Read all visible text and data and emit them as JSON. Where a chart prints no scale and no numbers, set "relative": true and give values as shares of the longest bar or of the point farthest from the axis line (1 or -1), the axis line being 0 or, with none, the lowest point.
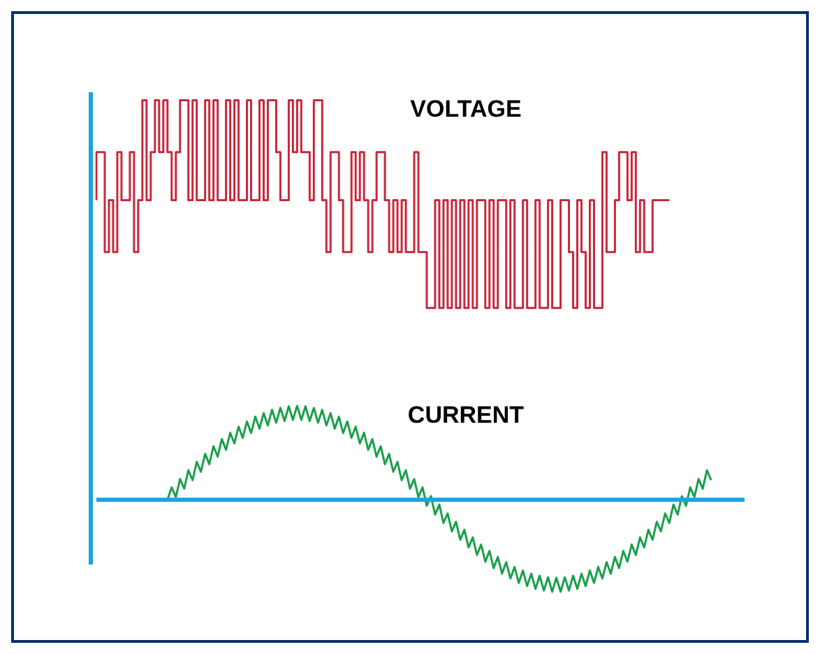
{
  "chart_data": {
    "type": "line",
    "relative": true,
    "ref_lines": [
      {
        "axis": "y",
        "value": 0,
        "color": "#1aa3e0"
      }
    ],
    "legend": false,
    "grid": false,
    "marker": "none",
    "tick_labels": false,
    "categories": [
      null,
      null,
      null,
      null,
      null,
      null,
      null,
      null,
      null,
      null,
      null,
      null,
      null,
      null,
      null,
      null,
      null,
      null,
      null,
      null,
      null,
      null,
      null,
      null,
      null,
      null,
      null,
      null,
      null,
      null,
      null,
      null,
      null,
      null,
      null,
      null,
      null,
      null,
      null,
      null,
      null,
      null,
      null,
      null,
      null,
      null,
      null,
      null,
      null,
      null,
      null,
      null,
      null,
      null,
      null,
      null,
      null,
      null,
      null,
      null,
      null,
      null,
      null,
      null,
      null,
      null,
      null,
      null,
      null,
      null,
      null,
      null,
      null,
      null,
      null,
      null,
      null,
      null,
      null,
      null,
      null,
      null,
      null,
      null,
      null,
      null,
      null,
      null,
      null,
      null,
      null,
      null,
      null,
      null,
      null,
      null,
      null,
      null,
      null,
      null,
      null,
      null,
      null,
      null,
      null,
      null,
      null,
      null,
      null,
      null,
      null,
      null,
      null,
      null,
      null,
      null,
      null,
      null,
      null,
      null,
      null,
      null,
      null,
      null,
      null,
      null,
      null,
      null,
      null,
      null,
      null,
      null,
      null,
      null,
      null,
      null,
      null,
      null,
      null,
      null,
      null,
      null,
      null,
      null,
      null,
      null,
      null,
      null,
      null,
      null,
      null,
      null,
      null,
      null,
      null,
      null
    ],
    "series": [
      {
        "name": "VOLTAGE",
        "type": "step",
        "color": "#c8283c",
        "values": [
          0.75,
          0.87,
          0.87,
          0.62,
          0.75,
          0.62,
          0.87,
          0.75,
          0.75,
          0.87,
          0.62,
          0.75,
          1,
          0.75,
          0.87,
          1,
          0.87,
          1,
          0.87,
          0.75,
          0.87,
          1,
          1,
          0.75,
          1,
          0.75,
          0.75,
          1,
          0.75,
          1,
          0.75,
          0.75,
          1,
          0.75,
          1,
          0.75,
          0.75,
          1,
          0.75,
          0.75,
          1,
          0.75,
          1,
          1,
          0.87,
          0.75,
          0.75,
          1,
          0.87,
          1,
          0.87,
          0.87,
          0.75,
          1,
          1,
          0.75,
          0.62,
          0.87,
          0.87,
          0.75,
          0.62,
          0.62,
          0.87,
          0.75,
          0.87,
          0.75,
          0.62,
          0.75,
          0.87,
          0.87,
          0.75,
          0.62,
          0.75,
          0.62,
          0.75,
          0.62,
          0.62,
          0.87,
          0.62,
          0.62,
          0.48,
          0.48,
          0.75,
          0.48,
          0.75,
          0.48,
          0.75,
          0.48,
          0.75,
          0.48,
          0.75,
          0.48,
          0.75,
          0.75,
          0.48,
          0.75,
          0.48,
          0.75,
          0.75,
          0.48,
          0.75,
          0.48,
          0.48,
          0.75,
          0.48,
          0.48,
          0.75,
          0.48,
          0.48,
          0.75,
          0.48,
          0.48,
          0.75,
          0.75,
          0.62,
          0.48,
          0.75,
          0.62,
          0.48,
          0.75,
          0.48,
          0.48,
          0.87,
          0.62,
          0.62,
          0.75,
          0.87,
          0.87,
          0.75,
          0.87,
          0.62,
          0.75,
          0.62,
          0.62,
          0.75,
          0.75,
          0.75,
          0.75,
          null,
          null,
          null,
          null,
          null,
          null,
          null,
          null,
          null,
          null,
          null,
          null,
          null,
          null,
          null,
          null,
          null,
          null
        ]
      },
      {
        "name": "CURRENT",
        "type": "line",
        "color": "#18a04a",
        "values": [
          null,
          null,
          null,
          null,
          null,
          null,
          null,
          null,
          null,
          null,
          null,
          null,
          null,
          null,
          null,
          null,
          null,
          0,
          0.031,
          0.007,
          0.052,
          0.028,
          0.074,
          0.049,
          0.095,
          0.07,
          0.115,
          0.089,
          0.134,
          0.108,
          0.152,
          0.125,
          0.168,
          0.141,
          0.183,
          0.155,
          0.196,
          0.167,
          0.208,
          0.178,
          0.217,
          0.186,
          0.225,
          0.193,
          0.23,
          0.197,
          0.234,
          0.2,
          0.235,
          0.2,
          0.234,
          0.197,
          0.23,
          0.193,
          0.225,
          0.186,
          0.217,
          0.178,
          0.208,
          0.167,
          0.196,
          0.155,
          0.183,
          0.141,
          0.168,
          0.125,
          0.152,
          0.108,
          0.134,
          0.089,
          0.115,
          0.07,
          0.095,
          0.049,
          0.074,
          0.028,
          0.052,
          0.007,
          0.031,
          -0.015,
          0.009,
          -0.037,
          -0.012,
          -0.058,
          -0.034,
          -0.079,
          -0.055,
          -0.1,
          -0.075,
          -0.119,
          -0.094,
          -0.138,
          -0.112,
          -0.155,
          -0.128,
          -0.171,
          -0.143,
          -0.185,
          -0.156,
          -0.197,
          -0.168,
          -0.208,
          -0.177,
          -0.216,
          -0.185,
          -0.223,
          -0.19,
          -0.227,
          -0.194,
          -0.23,
          -0.195,
          -0.23,
          -0.194,
          -0.227,
          -0.19,
          -0.223,
          -0.185,
          -0.216,
          -0.177,
          -0.208,
          -0.168,
          -0.197,
          -0.156,
          -0.185,
          -0.143,
          -0.171,
          -0.128,
          -0.155,
          -0.112,
          -0.138,
          -0.094,
          -0.119,
          -0.075,
          -0.1,
          -0.055,
          -0.079,
          -0.034,
          -0.058,
          -0.012,
          -0.037,
          0.009,
          -0.015,
          0.031,
          0.007,
          0.052,
          0.028,
          0.074,
          0.049,
          null,
          null,
          null,
          null,
          null,
          null,
          null,
          null
        ]
      }
    ]
  }
}
